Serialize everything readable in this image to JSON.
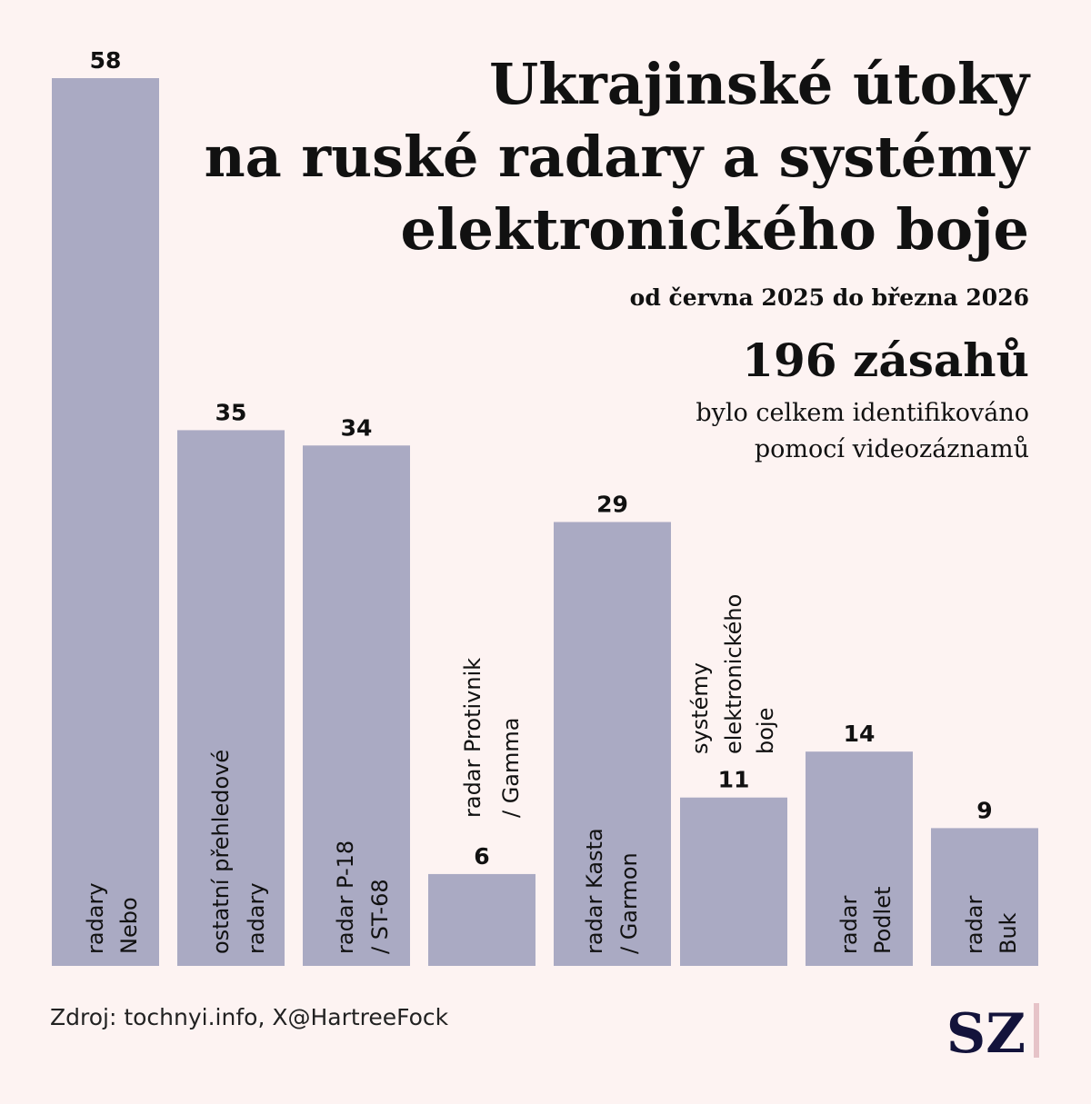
{
  "colors": {
    "background": "#fdf3f2",
    "bar": "#aaaac3",
    "text": "#111111",
    "logo": "#13133b",
    "logo_bar": "#e6c3c8"
  },
  "chart_data": {
    "type": "bar",
    "title": [
      "Ukrajinské útoky",
      "na ruské radary a systémy",
      "elektronického boje"
    ],
    "subtitle": "od června 2025 do března 2026",
    "total_label": "196 zásahů",
    "total_note": [
      "bylo celkem identifikováno",
      "pomocí videozáznamů"
    ],
    "categories": [
      [
        "radary",
        "Nebo"
      ],
      [
        "ostatní přehledové",
        "radary"
      ],
      [
        "radar P-18",
        "/ ST-68"
      ],
      [
        "radar Protivnik",
        "/ Gamma"
      ],
      [
        "radar Kasta",
        "/ Garmon"
      ],
      [
        "systémy",
        "elektronického",
        "boje"
      ],
      [
        "radar",
        "Podlet"
      ],
      [
        "radar",
        "Buk"
      ]
    ],
    "values": [
      58,
      35,
      34,
      6,
      29,
      11,
      14,
      9
    ],
    "ylim": [
      0,
      58
    ],
    "xlabel": "",
    "ylabel": "",
    "grid": false
  },
  "source": "Zdroj: tochnyi.info, X@HartreeFock",
  "logo": "SZ"
}
